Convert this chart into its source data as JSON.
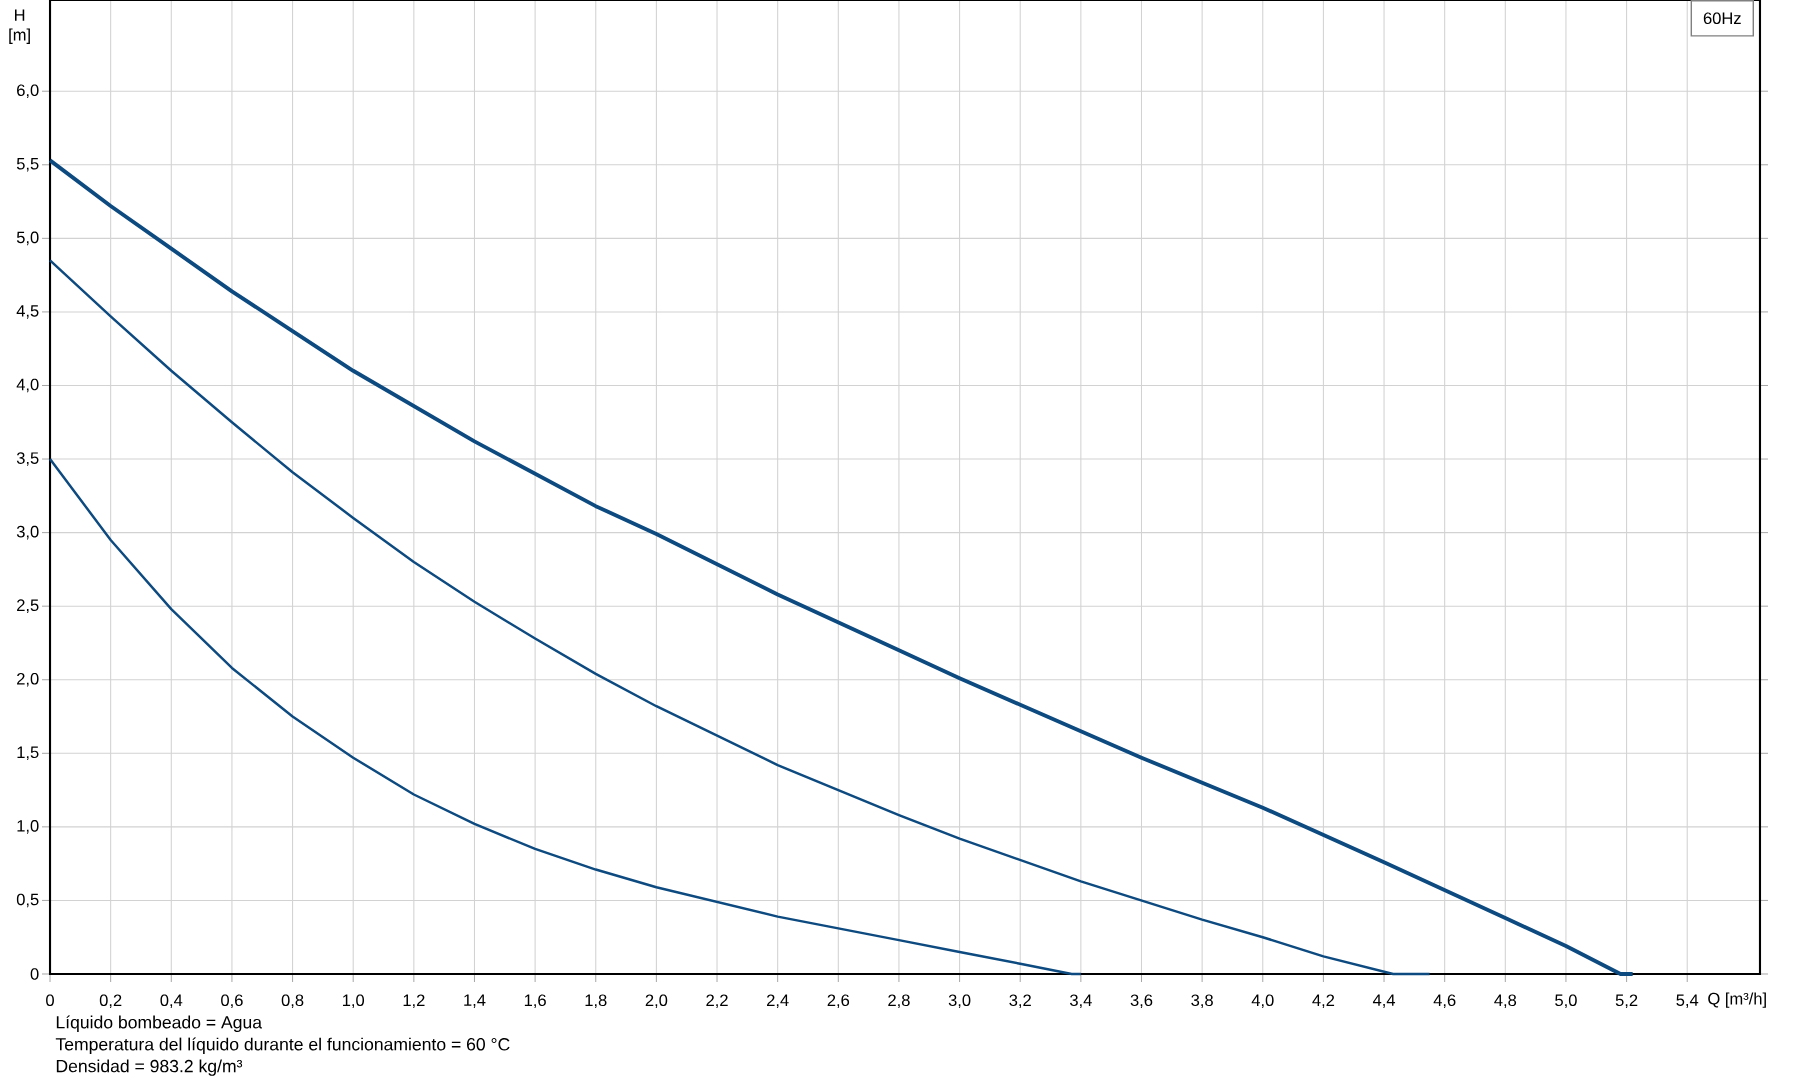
{
  "chart_data": {
    "type": "line",
    "title": "60Hz",
    "xlabel": "Q [m³/h]",
    "ylabel": "H [m]",
    "xlim": [
      0,
      5.64
    ],
    "ylim": [
      0,
      6.62
    ],
    "xticks": [
      0,
      {
        "value": 0.2,
        "label": "0,2"
      },
      {
        "value": 0.4,
        "label": "0,4"
      },
      {
        "value": 0.6,
        "label": "0,6"
      },
      {
        "value": 0.8,
        "label": "0,8"
      },
      {
        "value": 1.0,
        "label": "1,0"
      },
      {
        "value": 1.2,
        "label": "1,2"
      },
      {
        "value": 1.4,
        "label": "1,4"
      },
      {
        "value": 1.6,
        "label": "1,6"
      },
      {
        "value": 1.8,
        "label": "1,8"
      },
      {
        "value": 2.0,
        "label": "2,0"
      },
      {
        "value": 2.2,
        "label": "2,2"
      },
      {
        "value": 2.4,
        "label": "2,4"
      },
      {
        "value": 2.6,
        "label": "2,6"
      },
      {
        "value": 2.8,
        "label": "2,8"
      },
      {
        "value": 3.0,
        "label": "3,0"
      },
      {
        "value": 3.2,
        "label": "3,2"
      },
      {
        "value": 3.4,
        "label": "3,4"
      },
      {
        "value": 3.6,
        "label": "3,6"
      },
      {
        "value": 3.8,
        "label": "3,8"
      },
      {
        "value": 4.0,
        "label": "4,0"
      },
      {
        "value": 4.2,
        "label": "4,2"
      },
      {
        "value": 4.4,
        "label": "4,4"
      },
      {
        "value": 4.6,
        "label": "4,6"
      },
      {
        "value": 4.8,
        "label": "4,8"
      },
      {
        "value": 5.0,
        "label": "5,0"
      },
      {
        "value": 5.2,
        "label": "5,2"
      },
      {
        "value": 5.4,
        "label": "5,4"
      }
    ],
    "yticks": [
      0,
      {
        "value": 0.5,
        "label": "0,5"
      },
      {
        "value": 1.0,
        "label": "1,0"
      },
      {
        "value": 1.5,
        "label": "1,5"
      },
      {
        "value": 2.0,
        "label": "2,0"
      },
      {
        "value": 2.5,
        "label": "2,5"
      },
      {
        "value": 3.0,
        "label": "3,0"
      },
      {
        "value": 3.5,
        "label": "3,5"
      },
      {
        "value": 4.0,
        "label": "4,0"
      },
      {
        "value": 4.5,
        "label": "4,5"
      },
      {
        "value": 5.0,
        "label": "5,0"
      },
      {
        "value": 5.5,
        "label": "5,5"
      },
      {
        "value": 6.0,
        "label": "6,0"
      }
    ],
    "grid": true,
    "marker": "none",
    "line_style": "solid",
    "series": [
      {
        "color": "#0d4a80",
        "x": [
          0,
          0.2,
          0.4,
          0.6,
          0.8,
          1.0,
          1.4,
          1.8,
          2.0,
          2.4,
          2.8,
          3.0,
          3.2,
          3.6,
          4.0,
          4.4,
          4.8,
          5.0,
          5.18,
          5.22
        ],
        "values": [
          5.53,
          5.22,
          4.93,
          4.64,
          4.37,
          4.1,
          3.62,
          3.18,
          2.99,
          2.58,
          2.2,
          2.01,
          1.83,
          1.47,
          1.13,
          0.76,
          0.38,
          0.19,
          0,
          0
        ]
      },
      {
        "color": "#0d4a80",
        "x": [
          0,
          0.2,
          0.4,
          0.6,
          0.8,
          1.0,
          1.2,
          1.4,
          1.6,
          1.8,
          2.0,
          2.4,
          2.8,
          3.0,
          3.4,
          3.8,
          4.0,
          4.2,
          4.43,
          4.55
        ],
        "values": [
          4.85,
          4.47,
          4.1,
          3.75,
          3.41,
          3.1,
          2.8,
          2.53,
          2.28,
          2.04,
          1.82,
          1.42,
          1.08,
          0.92,
          0.63,
          0.37,
          0.25,
          0.12,
          0,
          0
        ]
      },
      {
        "color": "#0d4a80",
        "x": [
          0,
          0.2,
          0.4,
          0.6,
          0.8,
          1.0,
          1.2,
          1.4,
          1.6,
          1.8,
          2.0,
          2.4,
          2.8,
          3.0,
          3.2,
          3.37,
          3.4
        ],
        "values": [
          3.5,
          2.95,
          2.48,
          2.08,
          1.75,
          1.47,
          1.22,
          1.02,
          0.85,
          0.71,
          0.59,
          0.39,
          0.23,
          0.15,
          0.07,
          0,
          0
        ]
      }
    ],
    "annotations": [
      "Líquido bombeado = Agua",
      "Temperatura del líquido durante el funcionamiento = 60 °C",
      "Densidad = 983.2 kg/m³"
    ]
  }
}
